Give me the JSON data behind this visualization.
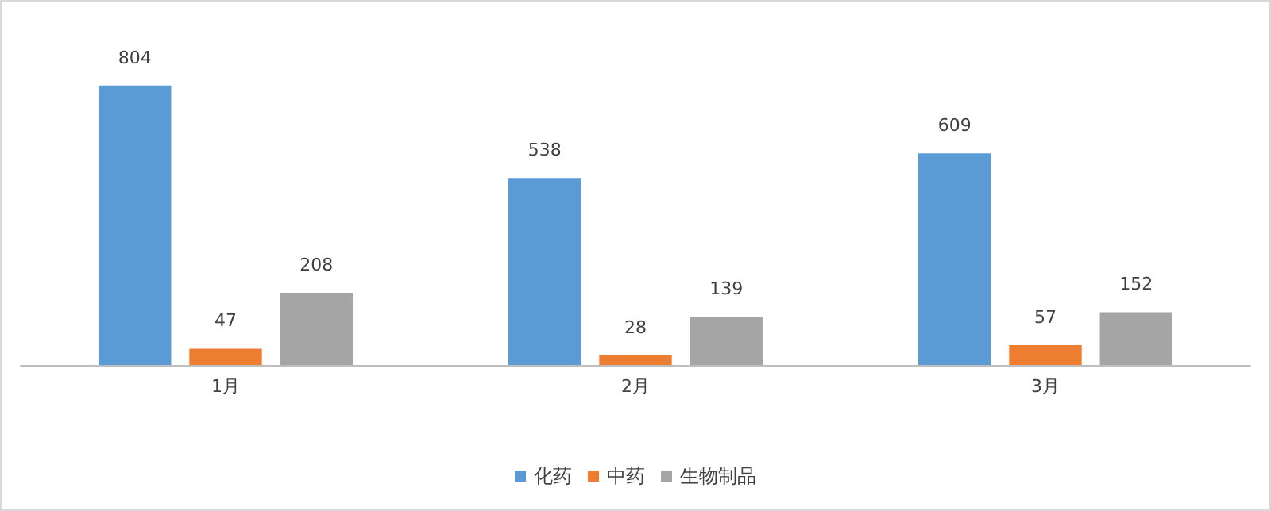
{
  "chart_data": {
    "type": "bar",
    "categories": [
      "1月",
      "2月",
      "3月"
    ],
    "series": [
      {
        "name": "化药",
        "color": "#5b9bd5",
        "values": [
          804,
          538,
          609
        ]
      },
      {
        "name": "中药",
        "color": "#ed7d31",
        "values": [
          47,
          28,
          57
        ]
      },
      {
        "name": "生物制品",
        "color": "#a5a5a5",
        "values": [
          208,
          139,
          152
        ]
      }
    ],
    "data_labels": true,
    "legend": "bottom",
    "tick_labels": "x"
  }
}
